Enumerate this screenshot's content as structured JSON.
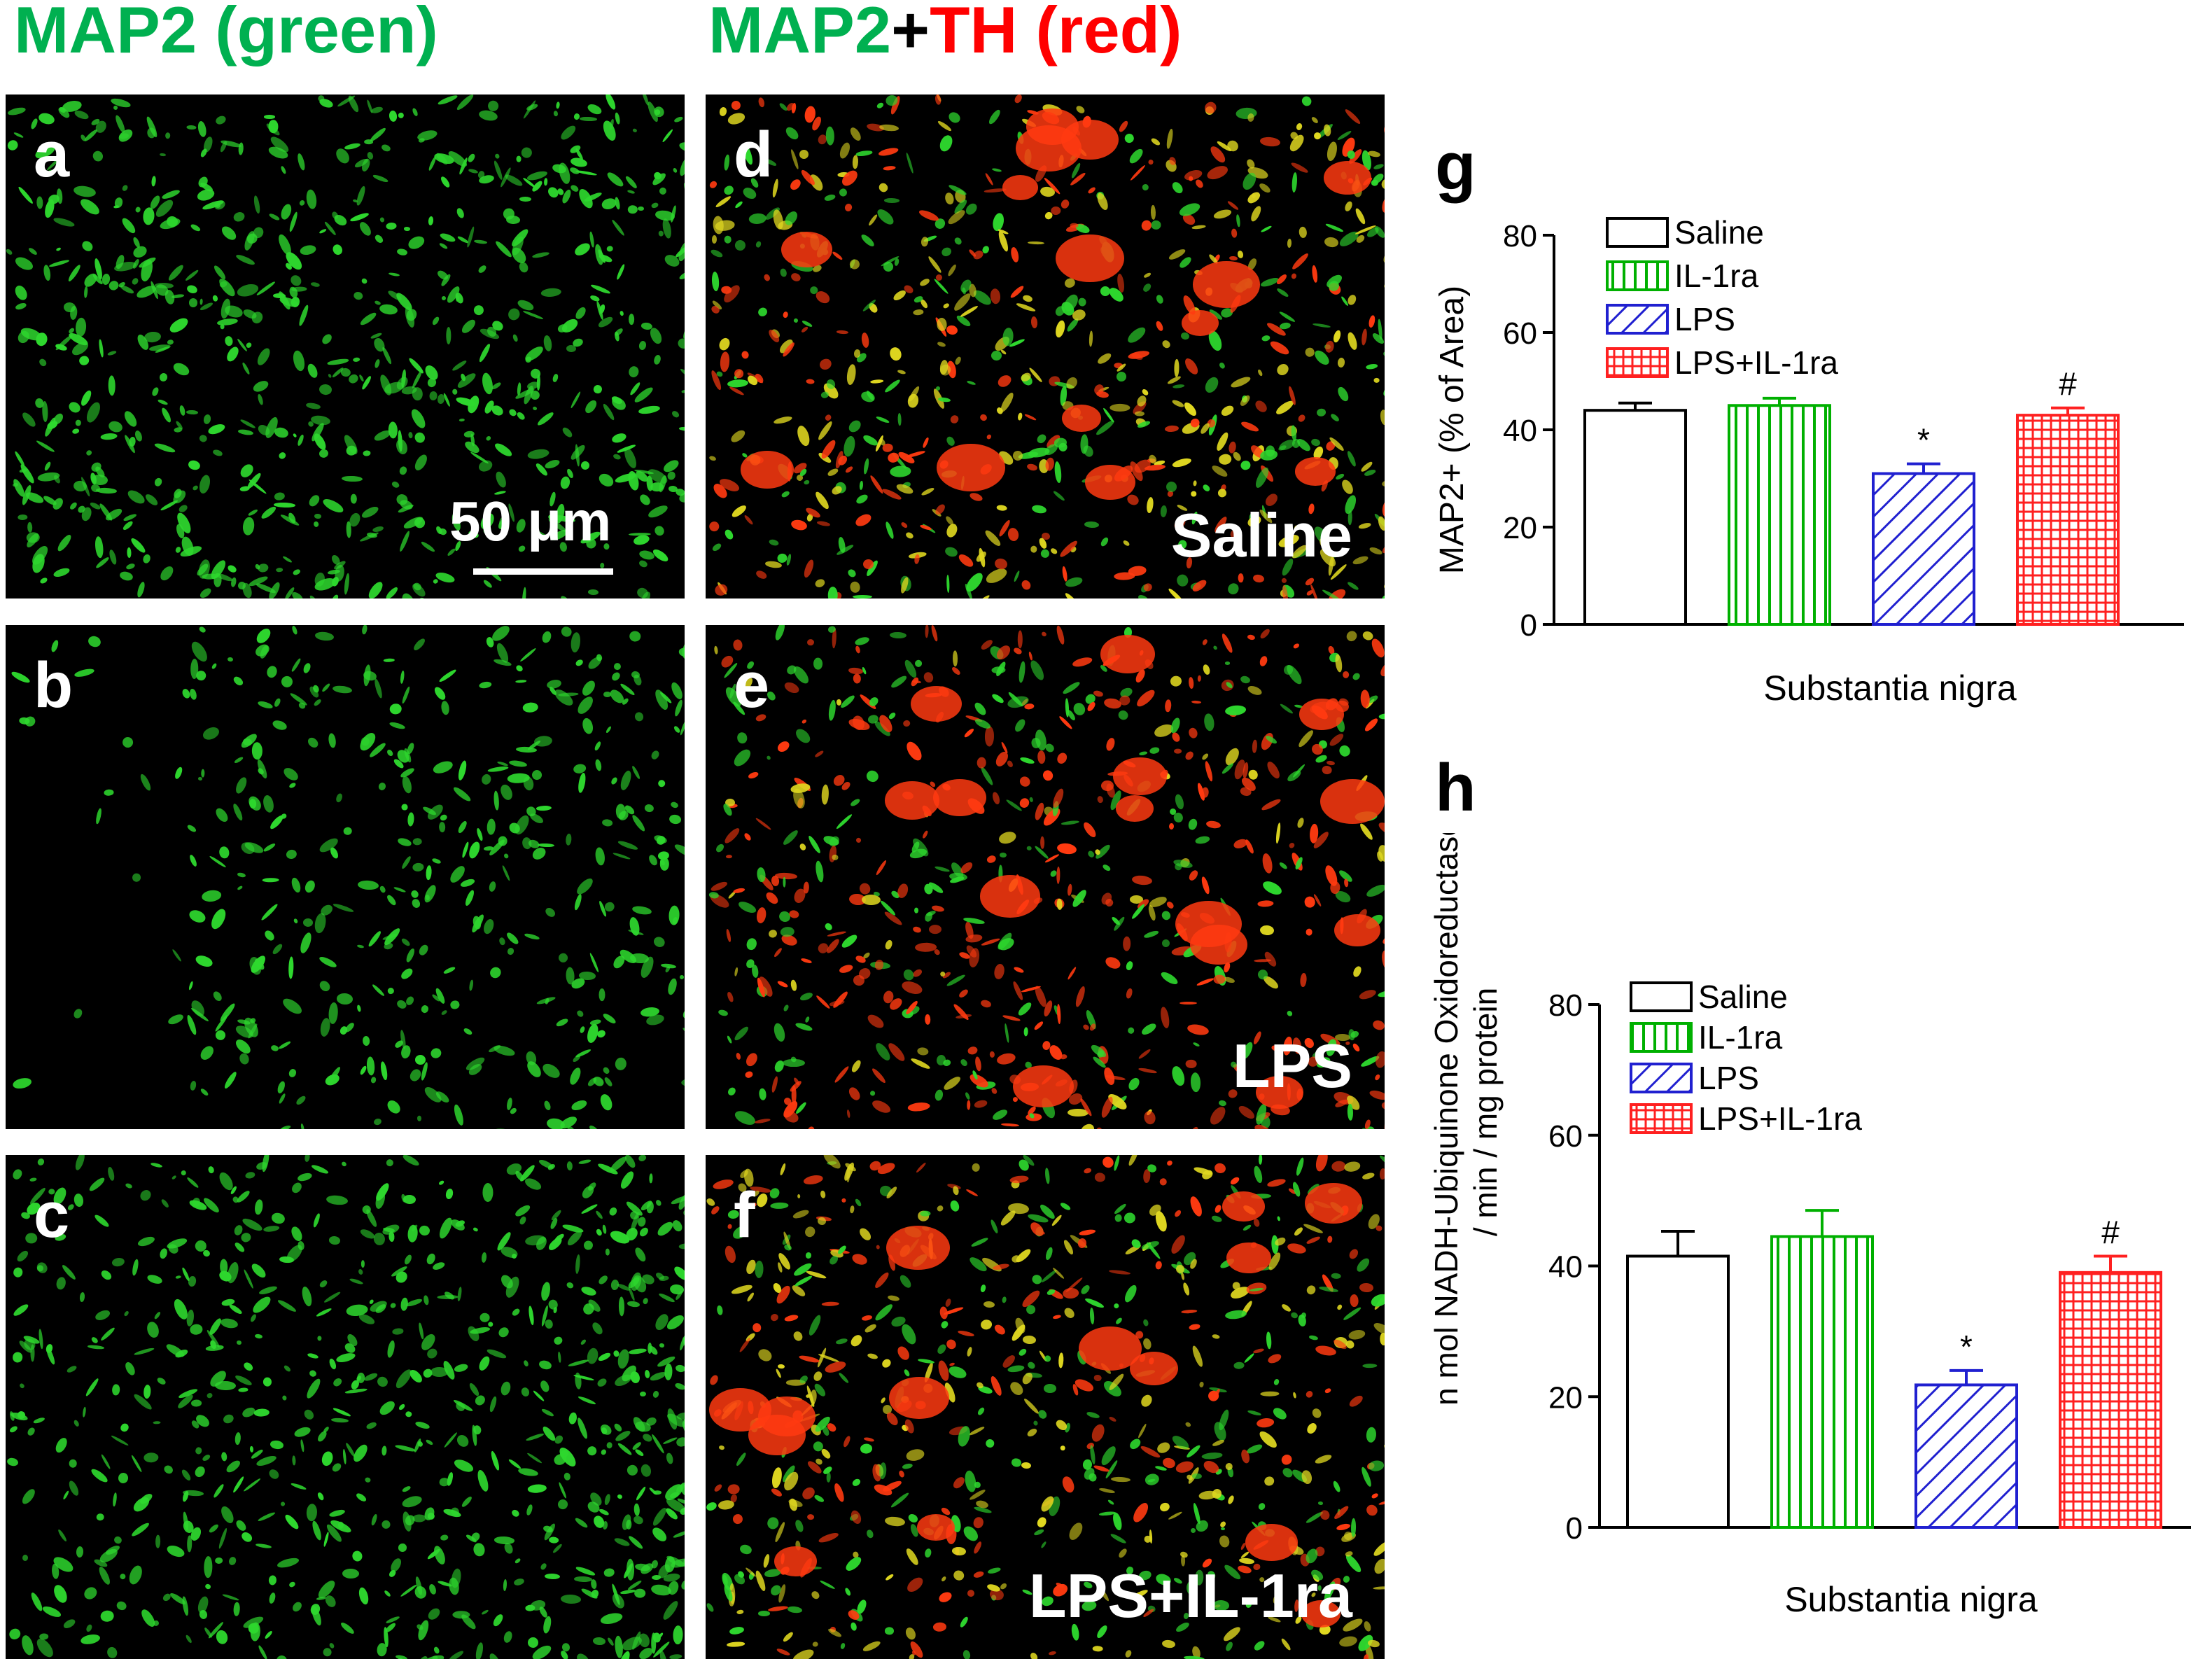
{
  "titles": {
    "left": "MAP2 (green)",
    "right_part1": "MAP2",
    "right_plus": "+",
    "right_part2": "TH (red)"
  },
  "colors": {
    "title_green": "#00b050",
    "title_red": "#ff0000",
    "map2_green": "#2ed82e",
    "th_red": "#ff3a10",
    "overlap_yellow": "#e0d820",
    "saline": "#000000",
    "il1ra": "#00b000",
    "lps": "#2020d0",
    "lps_il1ra": "#ff2020"
  },
  "micrographs": {
    "a": {
      "letter": "a",
      "label": "",
      "scale_text": "50 μm"
    },
    "b": {
      "letter": "b",
      "label": ""
    },
    "c": {
      "letter": "c",
      "label": ""
    },
    "d": {
      "letter": "d",
      "label": "Saline"
    },
    "e": {
      "letter": "e",
      "label": "LPS"
    },
    "f": {
      "letter": "f",
      "label": "LPS+IL-1ra"
    }
  },
  "chart_data": [
    {
      "panel": "g",
      "type": "bar",
      "categories": [
        "Saline",
        "IL-1ra",
        "LPS",
        "LPS+IL-1ra"
      ],
      "values": [
        44,
        45,
        31,
        43
      ],
      "errors": [
        1.5,
        1.5,
        2,
        1.5
      ],
      "annotations": [
        "",
        "",
        "*",
        "#"
      ],
      "patterns": [
        "open",
        "vertical",
        "diagonal",
        "grid"
      ],
      "xlabel": "Substantia nigra",
      "ylabel": "MAP2+ (% of Area)",
      "ylim": [
        0,
        80
      ],
      "yticks": [
        0,
        20,
        40,
        60,
        80
      ],
      "legend": [
        "Saline",
        "IL-1ra",
        "LPS",
        "LPS+IL-1ra"
      ],
      "legend_position": "top-left"
    },
    {
      "panel": "h",
      "type": "bar",
      "categories": [
        "Saline",
        "IL-1ra",
        "LPS",
        "LPS+IL-1ra"
      ],
      "values": [
        41.5,
        44.5,
        21.8,
        39
      ],
      "errors": [
        3.8,
        4,
        2.2,
        2.5
      ],
      "annotations": [
        "",
        "",
        "*",
        "#"
      ],
      "patterns": [
        "open",
        "vertical",
        "diagonal",
        "grid"
      ],
      "xlabel": "Substantia nigra",
      "ylabel_line1": "n mol NADH-Ubiquinone Oxidoreductase",
      "ylabel_line2": "/ min / mg protein",
      "ylim": [
        0,
        80
      ],
      "yticks": [
        0,
        20,
        40,
        60,
        80
      ],
      "legend": [
        "Saline",
        "IL-1ra",
        "LPS",
        "LPS+IL-1ra"
      ],
      "legend_position": "top-left"
    }
  ]
}
